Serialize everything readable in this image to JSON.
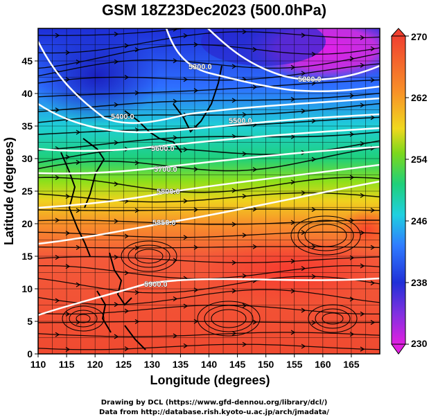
{
  "title": "GSM 18Z23Dec2023 (500.0hPa)",
  "x_axis": {
    "label": "Longitude (degrees)",
    "range": [
      110,
      170
    ],
    "ticks": [
      "110",
      "115",
      "120",
      "125",
      "130",
      "135",
      "140",
      "145",
      "150",
      "155",
      "160",
      "165"
    ]
  },
  "y_axis": {
    "label": "Latitude  (degrees)",
    "range": [
      0,
      50
    ],
    "ticks": [
      "0",
      "5",
      "10",
      "15",
      "20",
      "25",
      "30",
      "35",
      "40",
      "45"
    ]
  },
  "colorbar": {
    "range": [
      230,
      270
    ],
    "labels": [
      "230",
      "238",
      "246",
      "254",
      "262",
      "270"
    ]
  },
  "contours": [
    {
      "label": "5200.0"
    },
    {
      "label": "5300.0"
    },
    {
      "label": "5400.0"
    },
    {
      "label": "5500.0"
    },
    {
      "label": "5600.0"
    },
    {
      "label": "5700.0"
    },
    {
      "label": "5800.0"
    },
    {
      "label": "5850.0"
    },
    {
      "label": "5900.0"
    }
  ],
  "credits": {
    "line1": "Drawing by DCL (https://www.gfd-dennou.org/library/dcl/)",
    "line2": "Data from http://database.rish.kyoto-u.ac.jp/arch/jmadata/"
  }
}
